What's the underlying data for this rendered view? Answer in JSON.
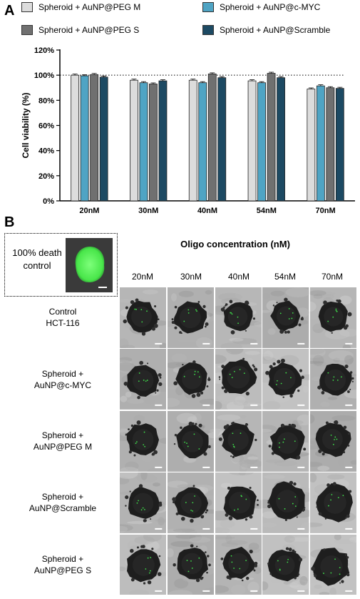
{
  "panel_a_label": "A",
  "panel_b_label": "B",
  "chart_data": {
    "type": "bar",
    "categories": [
      "20nM",
      "30nM",
      "40nM",
      "54nM",
      "70nM"
    ],
    "series": [
      {
        "name": "Spheroid + AuNP@PEG M",
        "color": "#dcdcdc",
        "values": [
          100,
          96,
          96,
          95.5,
          89
        ]
      },
      {
        "name": "Spheroid + AuNP@c-MYC",
        "color": "#4fa4c4",
        "values": [
          99.5,
          94,
          94,
          94,
          91.5
        ]
      },
      {
        "name": "Spheroid + AuNP@PEG S",
        "color": "#707070",
        "values": [
          100.5,
          93,
          101,
          101.5,
          90
        ]
      },
      {
        "name": "Spheroid + AuNP@Scramble",
        "color": "#1d4a63",
        "values": [
          98.5,
          95.5,
          98,
          98,
          89.5
        ]
      }
    ],
    "ylabel": "Cell viability (%)",
    "ylim": [
      0,
      120
    ],
    "yticks": [
      "0%",
      "20%",
      "40%",
      "60%",
      "80%",
      "100%",
      "120%"
    ],
    "reference_line": 100
  },
  "panel_b": {
    "death_control_label": "100% death\ncontrol",
    "title": "Oligo concentration (nM)",
    "columns": [
      "20nM",
      "30nM",
      "40nM",
      "54nM",
      "70nM"
    ],
    "rows": [
      "Control\nHCT-116",
      "Spheroid +\nAuNP@c-MYC",
      "Spheroid +\nAuNP@PEG M",
      "Spheroid +\nAuNP@Scramble",
      "Spheroid +\nAuNP@PEG S"
    ]
  }
}
